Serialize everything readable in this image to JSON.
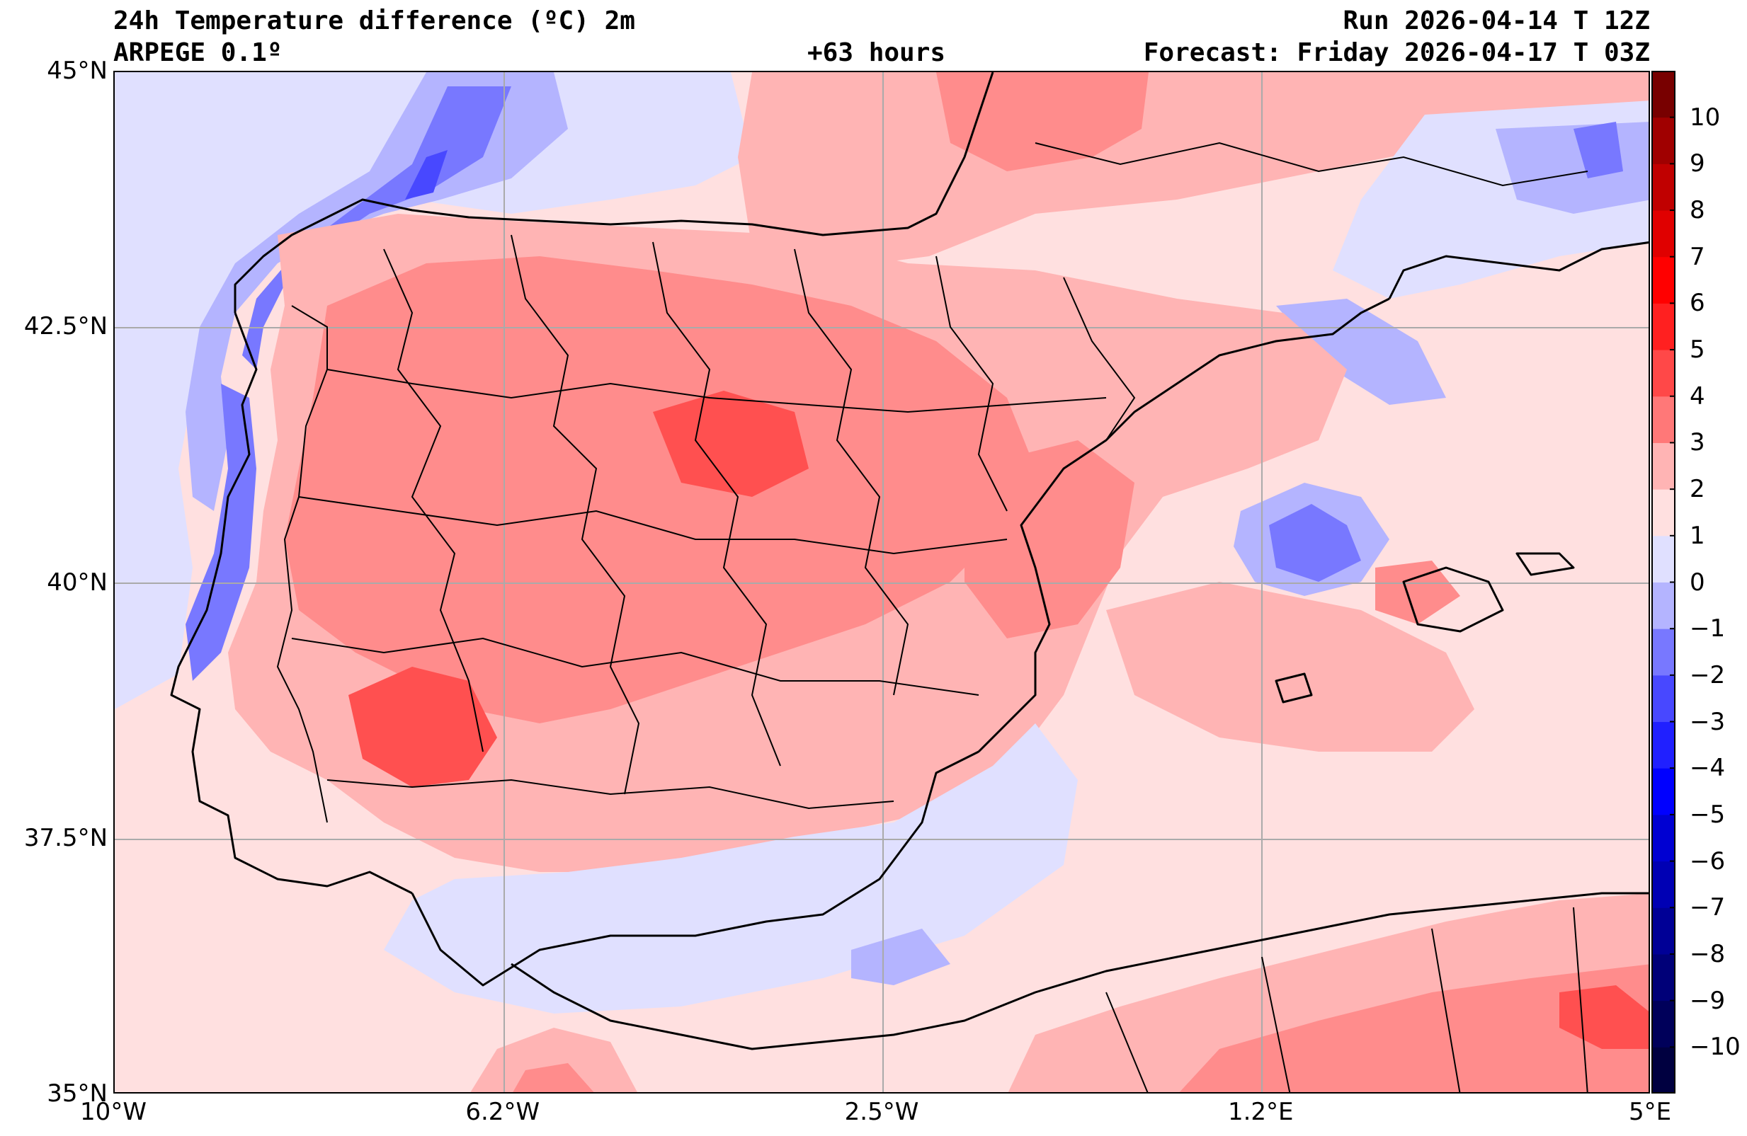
{
  "header": {
    "title": "24h Temperature difference (ºC) 2m",
    "model": "ARPEGE 0.1º",
    "lead_time": "+63 hours",
    "run": "Run 2026-04-14 T 12Z",
    "forecast": "Forecast: Friday 2026-04-17 T 03Z"
  },
  "axes": {
    "lat_labels": [
      {
        "label": "45°N",
        "value": 45
      },
      {
        "label": "42.5°N",
        "value": 42.5
      },
      {
        "label": "40°N",
        "value": 40
      },
      {
        "label": "37.5°N",
        "value": 37.5
      },
      {
        "label": "35°N",
        "value": 35
      }
    ],
    "lon_labels": [
      {
        "label": "10°W",
        "value": -10
      },
      {
        "label": "6.2°W",
        "value": -6.2
      },
      {
        "label": "2.5°W",
        "value": -2.5
      },
      {
        "label": "1.2°E",
        "value": 1.2
      },
      {
        "label": "5°E",
        "value": 5
      }
    ],
    "lat_range": [
      35,
      45
    ],
    "lon_range": [
      -10,
      5
    ]
  },
  "colorbar": {
    "min": -11,
    "max": 11,
    "tick_labels": [
      "10",
      "9",
      "8",
      "7",
      "6",
      "5",
      "4",
      "3",
      "2",
      "1",
      "0",
      "−1",
      "−2",
      "−3",
      "−4",
      "−5",
      "−6",
      "−7",
      "−8",
      "−9",
      "−10"
    ],
    "colors": [
      "#000040",
      "#00005a",
      "#000078",
      "#000096",
      "#0000b4",
      "#0000d2",
      "#0000ff",
      "#2020ff",
      "#4848ff",
      "#7878ff",
      "#b4b4ff",
      "#e0e0ff",
      "#ffe0e0",
      "#ffb4b4",
      "#ff7878",
      "#ff4848",
      "#ff2020",
      "#ff0000",
      "#e00000",
      "#c00000",
      "#a00000",
      "#780000"
    ]
  },
  "palette": {
    "neutral_warm": "#ffe0e0",
    "warm1": "#ffb4b4",
    "warm2": "#ff8c8c",
    "warm3": "#ff5050",
    "neutral_cool": "#e0e0ff",
    "cool1": "#b4b4ff",
    "cool2": "#7878ff",
    "cool3": "#4848ff",
    "coast": "#000000",
    "grid": "#aaaaaa"
  }
}
